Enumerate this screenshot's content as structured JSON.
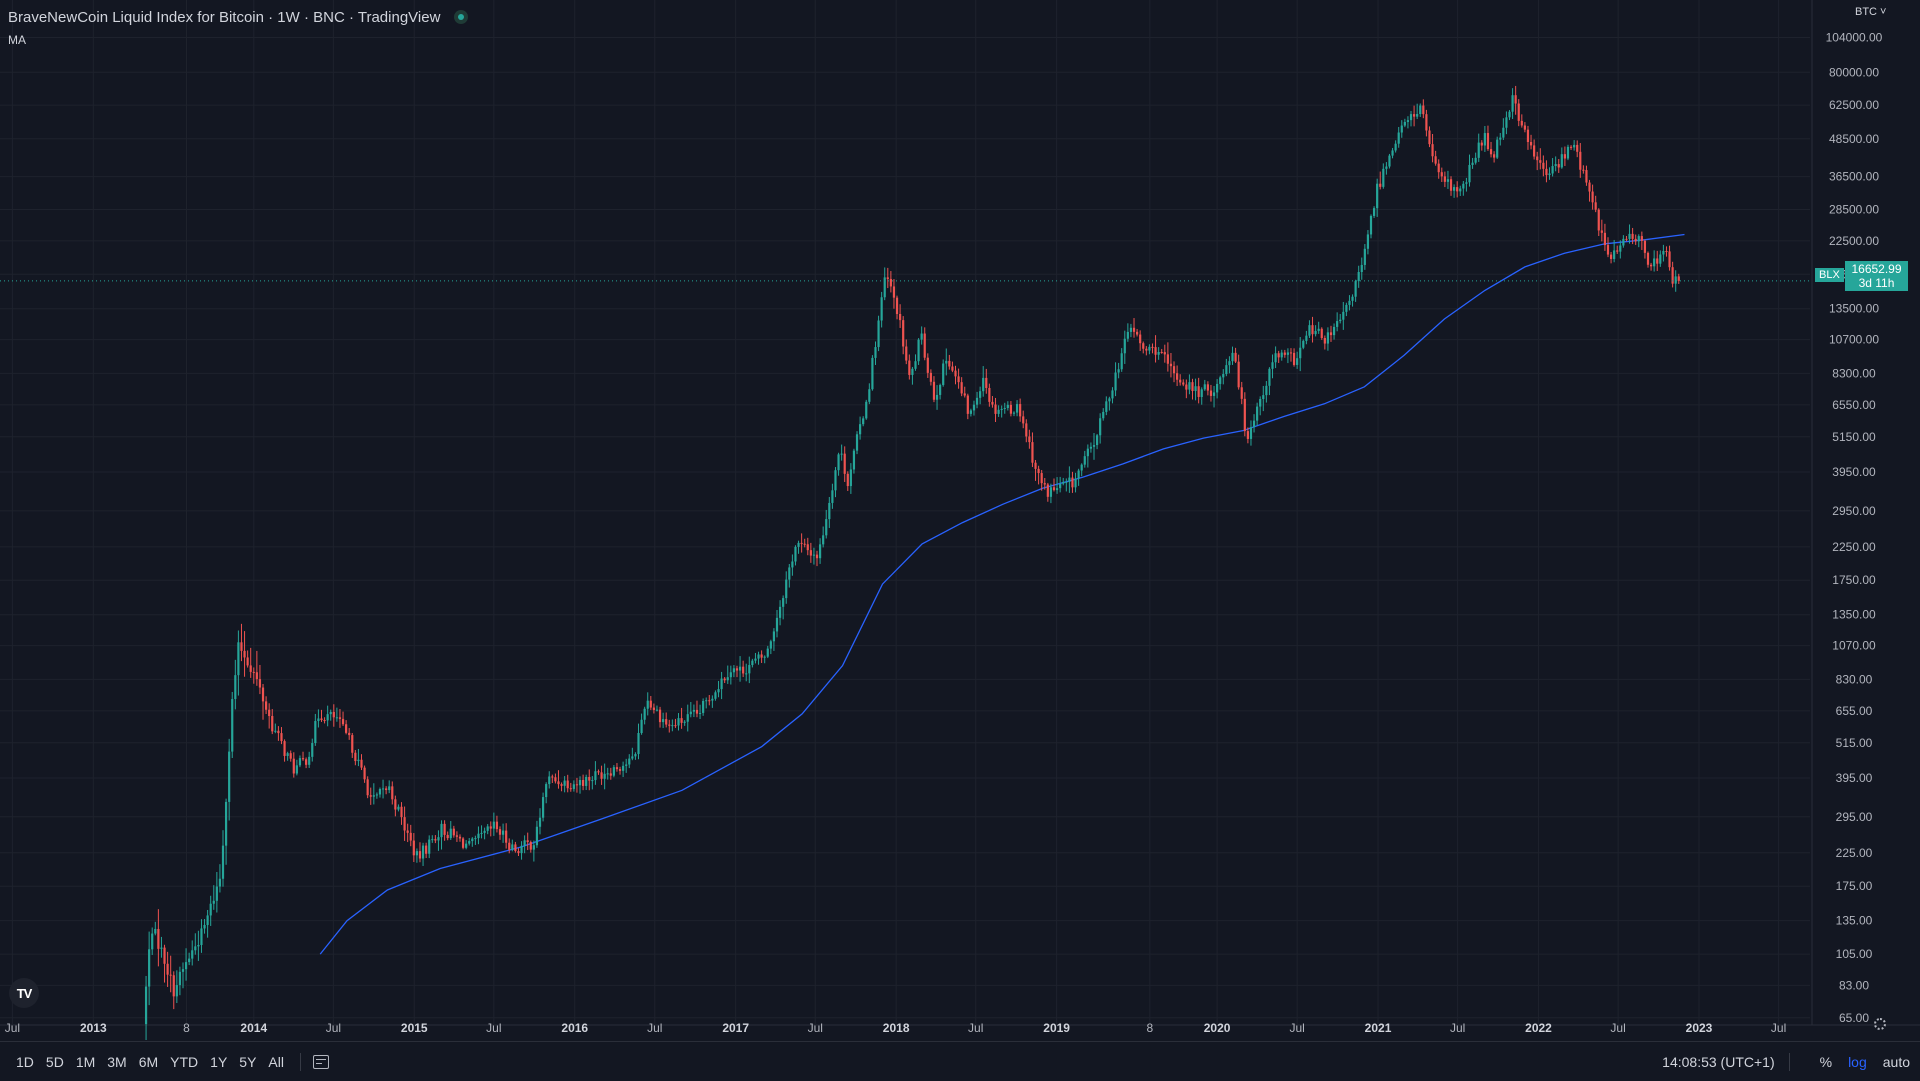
{
  "header": {
    "title": "BraveNewCoin Liquid Index for Bitcoin · 1W · BNC · TradingView",
    "indicator": "MA",
    "currency": "BTC"
  },
  "price_label": {
    "symbol": "BLX",
    "value": "16652.99",
    "countdown": "3d 11h"
  },
  "bottom_bar": {
    "ranges": [
      "1D",
      "5D",
      "1M",
      "3M",
      "6M",
      "YTD",
      "1Y",
      "5Y",
      "All"
    ],
    "time": "14:08:53 (UTC+1)",
    "percent": "%",
    "log": "log",
    "auto": "auto"
  },
  "logo_text": "TV",
  "colors": {
    "background": "#131722",
    "up": "#26a69a",
    "down": "#ef5350",
    "ma": "#2962ff",
    "grid": "#1e222d"
  },
  "chart_data": {
    "type": "candlestick",
    "title": "BraveNewCoin Liquid Index for Bitcoin",
    "yscale": "log",
    "ylim": [
      55,
      125000
    ],
    "xlim": [
      "2012-07-01",
      "2023-09-15"
    ],
    "y_ticks": [
      "104000.00",
      "80000.00",
      "62500.00",
      "48500.00",
      "36500.00",
      "28500.00",
      "22500.00",
      "17500.00",
      "13500.00",
      "10700.00",
      "8300.00",
      "6550.00",
      "5150.00",
      "3950.00",
      "2950.00",
      "2250.00",
      "1750.00",
      "1350.00",
      "1070.00",
      "830.00",
      "655.00",
      "515.00",
      "395.00",
      "295.00",
      "225.00",
      "175.00",
      "135.00",
      "105.00",
      "83.00",
      "65.00"
    ],
    "x_ticks": [
      {
        "label": "Jul",
        "date": "2012-07-01",
        "year": false
      },
      {
        "label": "2013",
        "date": "2013-01-01",
        "year": true
      },
      {
        "label": "8",
        "date": "2013-08-01",
        "year": false
      },
      {
        "label": "2014",
        "date": "2014-01-01",
        "year": true
      },
      {
        "label": "Jul",
        "date": "2014-07-01",
        "year": false
      },
      {
        "label": "2015",
        "date": "2015-01-01",
        "year": true
      },
      {
        "label": "Jul",
        "date": "2015-07-01",
        "year": false
      },
      {
        "label": "2016",
        "date": "2016-01-01",
        "year": true
      },
      {
        "label": "Jul",
        "date": "2016-07-01",
        "year": false
      },
      {
        "label": "2017",
        "date": "2017-01-01",
        "year": true
      },
      {
        "label": "Jul",
        "date": "2017-07-01",
        "year": false
      },
      {
        "label": "2018",
        "date": "2018-01-01",
        "year": true
      },
      {
        "label": "Jul",
        "date": "2018-07-01",
        "year": false
      },
      {
        "label": "2019",
        "date": "2019-01-01",
        "year": true
      },
      {
        "label": "8",
        "date": "2019-08-01",
        "year": false
      },
      {
        "label": "2020",
        "date": "2020-01-01",
        "year": true
      },
      {
        "label": "Jul",
        "date": "2020-07-01",
        "year": false
      },
      {
        "label": "2021",
        "date": "2021-01-01",
        "year": true
      },
      {
        "label": "Jul",
        "date": "2021-07-01",
        "year": false
      },
      {
        "label": "2022",
        "date": "2022-01-01",
        "year": true
      },
      {
        "label": "Jul",
        "date": "2022-07-01",
        "year": false
      },
      {
        "label": "2023",
        "date": "2023-01-01",
        "year": true
      },
      {
        "label": "Jul",
        "date": "2023-07-01",
        "year": false
      }
    ],
    "last_price": 16652.99,
    "price_anchors": [
      [
        "2013-05-01",
        62
      ],
      [
        "2013-05-20",
        130
      ],
      [
        "2013-06-15",
        105
      ],
      [
        "2013-07-10",
        80
      ],
      [
        "2013-08-10",
        100
      ],
      [
        "2013-09-15",
        125
      ],
      [
        "2013-10-25",
        190
      ],
      [
        "2013-11-20",
        700
      ],
      [
        "2013-12-05",
        1080
      ],
      [
        "2014-01-10",
        860
      ],
      [
        "2014-02-20",
        580
      ],
      [
        "2014-04-10",
        420
      ],
      [
        "2014-05-10",
        460
      ],
      [
        "2014-06-05",
        640
      ],
      [
        "2014-07-15",
        620
      ],
      [
        "2014-08-20",
        500
      ],
      [
        "2014-10-05",
        330
      ],
      [
        "2014-11-10",
        370
      ],
      [
        "2015-01-15",
        215
      ],
      [
        "2015-03-10",
        270
      ],
      [
        "2015-05-15",
        235
      ],
      [
        "2015-07-10",
        275
      ],
      [
        "2015-08-25",
        230
      ],
      [
        "2015-10-10",
        245
      ],
      [
        "2015-11-05",
        390
      ],
      [
        "2016-01-15",
        380
      ],
      [
        "2016-03-15",
        415
      ],
      [
        "2016-05-20",
        450
      ],
      [
        "2016-06-18",
        720
      ],
      [
        "2016-08-10",
        580
      ],
      [
        "2016-10-15",
        640
      ],
      [
        "2016-12-25",
        900
      ],
      [
        "2017-01-15",
        880
      ],
      [
        "2017-03-20",
        1000
      ],
      [
        "2017-05-25",
        2300
      ],
      [
        "2017-07-15",
        2100
      ],
      [
        "2017-09-01",
        4700
      ],
      [
        "2017-09-20",
        3700
      ],
      [
        "2017-11-05",
        7200
      ],
      [
        "2017-12-15",
        17500
      ],
      [
        "2018-01-10",
        13500
      ],
      [
        "2018-02-08",
        7800
      ],
      [
        "2018-03-05",
        11000
      ],
      [
        "2018-04-05",
        6900
      ],
      [
        "2018-05-05",
        9500
      ],
      [
        "2018-06-25",
        6000
      ],
      [
        "2018-07-25",
        8200
      ],
      [
        "2018-08-15",
        6400
      ],
      [
        "2018-10-15",
        6400
      ],
      [
        "2018-11-25",
        3900
      ],
      [
        "2018-12-15",
        3400
      ],
      [
        "2019-02-15",
        3650
      ],
      [
        "2019-04-05",
        5000
      ],
      [
        "2019-05-25",
        8500
      ],
      [
        "2019-06-25",
        12000
      ],
      [
        "2019-07-25",
        9800
      ],
      [
        "2019-08-25",
        10000
      ],
      [
        "2019-10-01",
        8200
      ],
      [
        "2019-11-25",
        7200
      ],
      [
        "2020-01-05",
        7400
      ],
      [
        "2020-02-15",
        10200
      ],
      [
        "2020-03-14",
        5100
      ],
      [
        "2020-04-25",
        7500
      ],
      [
        "2020-05-20",
        9500
      ],
      [
        "2020-07-05",
        9200
      ],
      [
        "2020-08-05",
        11500
      ],
      [
        "2020-09-15",
        10700
      ],
      [
        "2020-10-25",
        13000
      ],
      [
        "2020-12-05",
        19000
      ],
      [
        "2021-01-05",
        33000
      ],
      [
        "2021-02-20",
        50000
      ],
      [
        "2021-04-14",
        62000
      ],
      [
        "2021-05-25",
        36000
      ],
      [
        "2021-07-15",
        32000
      ],
      [
        "2021-09-05",
        50000
      ],
      [
        "2021-09-25",
        42500
      ],
      [
        "2021-11-10",
        66000
      ],
      [
        "2021-12-15",
        47000
      ],
      [
        "2022-01-25",
        36500
      ],
      [
        "2022-03-30",
        46500
      ],
      [
        "2022-05-10",
        30000
      ],
      [
        "2022-06-18",
        19500
      ],
      [
        "2022-08-12",
        24000
      ],
      [
        "2022-09-20",
        19000
      ],
      [
        "2022-10-28",
        20500
      ],
      [
        "2022-11-10",
        16600
      ],
      [
        "2022-11-22",
        16650
      ]
    ],
    "ma_series": {
      "name": "MA",
      "points": [
        [
          "2014-06-01",
          105
        ],
        [
          "2014-08-01",
          135
        ],
        [
          "2014-11-01",
          170
        ],
        [
          "2015-03-01",
          200
        ],
        [
          "2015-09-01",
          235
        ],
        [
          "2016-03-01",
          290
        ],
        [
          "2016-09-01",
          360
        ],
        [
          "2017-03-01",
          500
        ],
        [
          "2017-06-01",
          640
        ],
        [
          "2017-09-01",
          920
        ],
        [
          "2017-12-01",
          1700
        ],
        [
          "2018-03-01",
          2300
        ],
        [
          "2018-06-01",
          2700
        ],
        [
          "2018-09-01",
          3100
        ],
        [
          "2018-12-01",
          3500
        ],
        [
          "2019-03-01",
          3800
        ],
        [
          "2019-06-01",
          4200
        ],
        [
          "2019-09-01",
          4700
        ],
        [
          "2019-12-01",
          5100
        ],
        [
          "2020-03-01",
          5400
        ],
        [
          "2020-06-01",
          6000
        ],
        [
          "2020-09-01",
          6600
        ],
        [
          "2020-12-01",
          7500
        ],
        [
          "2021-03-01",
          9500
        ],
        [
          "2021-06-01",
          12500
        ],
        [
          "2021-09-01",
          15500
        ],
        [
          "2021-12-01",
          18500
        ],
        [
          "2022-03-01",
          20500
        ],
        [
          "2022-06-01",
          22000
        ],
        [
          "2022-09-01",
          22700
        ],
        [
          "2022-11-29",
          23600
        ]
      ]
    }
  }
}
